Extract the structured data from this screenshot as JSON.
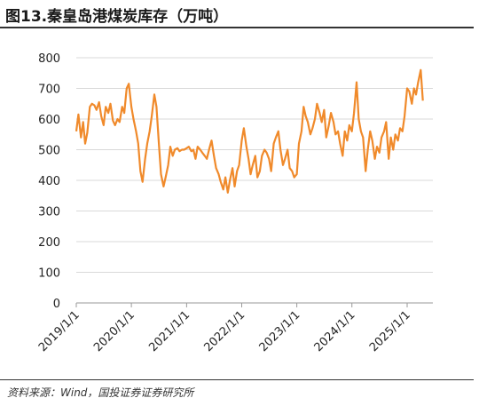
{
  "title": "图13.秦皇岛港煤炭库存（万吨）",
  "source": "资料来源：Wind，国投证券证券研究所",
  "chart_data": {
    "type": "line",
    "title": "图13.秦皇岛港煤炭库存（万吨）",
    "xlabel": "",
    "ylabel": "",
    "ylim": [
      0,
      800
    ],
    "yticks": [
      "0",
      "100",
      "200",
      "300",
      "400",
      "500",
      "600",
      "700",
      "800"
    ],
    "xticks": [
      "2019/1/1",
      "2020/1/1",
      "2021/1/1",
      "2022/1/1",
      "2023/1/1",
      "2024/1/1",
      "2025/1/1"
    ],
    "grid": "horizontal",
    "legend": "none",
    "color": "#F08A2B",
    "series": [
      {
        "x": [
          "2019/1/1",
          "2019/1/15",
          "2019/2/1",
          "2019/2/15",
          "2019/3/1",
          "2019/3/15",
          "2019/4/1",
          "2019/4/15",
          "2019/5/1",
          "2019/5/15",
          "2019/6/1",
          "2019/6/15",
          "2019/7/1",
          "2019/7/15",
          "2019/8/1",
          "2019/8/15",
          "2019/9/1",
          "2019/9/15",
          "2019/10/1",
          "2019/10/15",
          "2019/11/1",
          "2019/11/15",
          "2019/12/1",
          "2019/12/15",
          "2020/1/1",
          "2020/1/15",
          "2020/2/1",
          "2020/2/15",
          "2020/3/1",
          "2020/3/15",
          "2020/4/1",
          "2020/4/15",
          "2020/5/1",
          "2020/5/15",
          "2020/6/1",
          "2020/6/15",
          "2020/7/1",
          "2020/7/15",
          "2020/8/1",
          "2020/8/15",
          "2020/9/1",
          "2020/9/15",
          "2020/10/1",
          "2020/10/15",
          "2020/11/1",
          "2020/11/15",
          "2020/12/1",
          "2020/12/15",
          "2021/1/1",
          "2021/1/15",
          "2021/2/1",
          "2021/2/15",
          "2021/3/1",
          "2021/3/15",
          "2021/4/1",
          "2021/4/15",
          "2021/5/1",
          "2021/5/15",
          "2021/6/1",
          "2021/6/15",
          "2021/7/1",
          "2021/7/15",
          "2021/8/1",
          "2021/8/15",
          "2021/9/1",
          "2021/9/15",
          "2021/10/1",
          "2021/10/15",
          "2021/11/1",
          "2021/11/15",
          "2021/12/1",
          "2021/12/15",
          "2022/1/1",
          "2022/1/15",
          "2022/2/1",
          "2022/2/15",
          "2022/3/1",
          "2022/3/15",
          "2022/4/1",
          "2022/4/15",
          "2022/5/1",
          "2022/5/15",
          "2022/6/1",
          "2022/6/15",
          "2022/7/1",
          "2022/7/15",
          "2022/8/1",
          "2022/8/15",
          "2022/9/1",
          "2022/9/15",
          "2022/10/1",
          "2022/10/15",
          "2022/11/1",
          "2022/11/15",
          "2022/12/1",
          "2022/12/15",
          "2023/1/1",
          "2023/1/15",
          "2023/2/1",
          "2023/2/15",
          "2023/3/1",
          "2023/3/15",
          "2023/4/1",
          "2023/4/15",
          "2023/5/1",
          "2023/5/15",
          "2023/6/1",
          "2023/6/15",
          "2023/7/1",
          "2023/7/15",
          "2023/8/1",
          "2023/8/15",
          "2023/9/1",
          "2023/9/15",
          "2023/10/1",
          "2023/10/15",
          "2023/11/1",
          "2023/11/15",
          "2023/12/1",
          "2023/12/15",
          "2024/1/1",
          "2024/1/15",
          "2024/2/1",
          "2024/2/15",
          "2024/3/1",
          "2024/3/15",
          "2024/4/1",
          "2024/4/15",
          "2024/5/1",
          "2024/5/15",
          "2024/6/1",
          "2024/6/15",
          "2024/7/1",
          "2024/7/15",
          "2024/8/1",
          "2024/8/15",
          "2024/9/1",
          "2024/9/15",
          "2024/10/1",
          "2024/10/15",
          "2024/11/1",
          "2024/11/15",
          "2024/12/1",
          "2024/12/15",
          "2025/1/1",
          "2025/1/15",
          "2025/2/1",
          "2025/2/15",
          "2025/3/1",
          "2025/3/15",
          "2025/4/1",
          "2025/4/15"
        ],
        "values": [
          560,
          615,
          540,
          590,
          520,
          555,
          640,
          650,
          645,
          630,
          655,
          610,
          580,
          640,
          620,
          650,
          595,
          580,
          600,
          590,
          640,
          620,
          700,
          715,
          640,
          600,
          560,
          520,
          430,
          395,
          470,
          520,
          560,
          610,
          680,
          640,
          520,
          420,
          380,
          410,
          450,
          510,
          480,
          500,
          505,
          495,
          500,
          500,
          505,
          510,
          495,
          500,
          470,
          510,
          500,
          490,
          480,
          470,
          505,
          530,
          480,
          440,
          420,
          395,
          370,
          410,
          360,
          400,
          440,
          380,
          430,
          450,
          530,
          570,
          510,
          470,
          420,
          450,
          480,
          410,
          430,
          480,
          500,
          490,
          470,
          430,
          520,
          540,
          560,
          500,
          450,
          470,
          500,
          440,
          430,
          410,
          420,
          520,
          560,
          640,
          610,
          590,
          550,
          570,
          600,
          650,
          620,
          590,
          630,
          540,
          580,
          620,
          590,
          550,
          560,
          520,
          480,
          560,
          530,
          580,
          560,
          620,
          720,
          600,
          560,
          540,
          430,
          500,
          560,
          530,
          470,
          510,
          490,
          540,
          560,
          590,
          470,
          540,
          500,
          550,
          530,
          570,
          560,
          610,
          700,
          690,
          650,
          700,
          680,
          720,
          760,
          660
        ]
      }
    ]
  }
}
